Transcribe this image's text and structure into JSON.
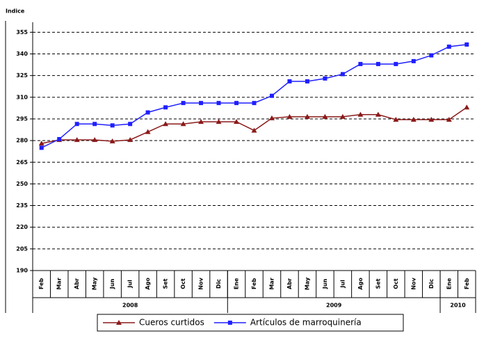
{
  "chart_data": {
    "type": "line",
    "y_label": "Indice",
    "categories": [
      "Feb",
      "Mar",
      "Abr",
      "May",
      "Jun",
      "Jul",
      "Ago",
      "Set",
      "Oct",
      "Nov",
      "Dic",
      "Ene",
      "Feb",
      "Mar",
      "Abr",
      "May",
      "Jun",
      "Jul",
      "Ago",
      "Set",
      "Oct",
      "Nov",
      "Dic",
      "Ene",
      "Feb"
    ],
    "groups": [
      {
        "label": "2008",
        "count": 11
      },
      {
        "label": "2009",
        "count": 12
      },
      {
        "label": "2010",
        "count": 2
      }
    ],
    "series": [
      {
        "name": "Cueros curtidos",
        "color": "#8b1a1a",
        "marker": "triangle",
        "values": [
          278,
          280.5,
          280.5,
          280.5,
          279.5,
          280.5,
          286,
          291.5,
          291.5,
          293,
          293,
          293,
          287,
          295.5,
          296.5,
          296.5,
          296.5,
          296.5,
          298,
          298,
          294.5,
          294.5,
          294.5,
          294.5,
          303
        ]
      },
      {
        "name": "Artículos de marroquinería",
        "color": "#1f1fff",
        "marker": "square",
        "values": [
          275,
          281,
          291.5,
          291.5,
          290.5,
          291.5,
          299.5,
          303,
          306,
          306,
          306,
          306,
          306,
          311,
          321,
          321,
          323,
          326,
          333,
          333,
          333,
          335,
          339,
          345,
          346.5
        ]
      }
    ],
    "ylim": [
      190,
      360
    ],
    "yticks": [
      190,
      205,
      220,
      235,
      250,
      265,
      280,
      295,
      310,
      325,
      340,
      355
    ],
    "grid": true
  }
}
